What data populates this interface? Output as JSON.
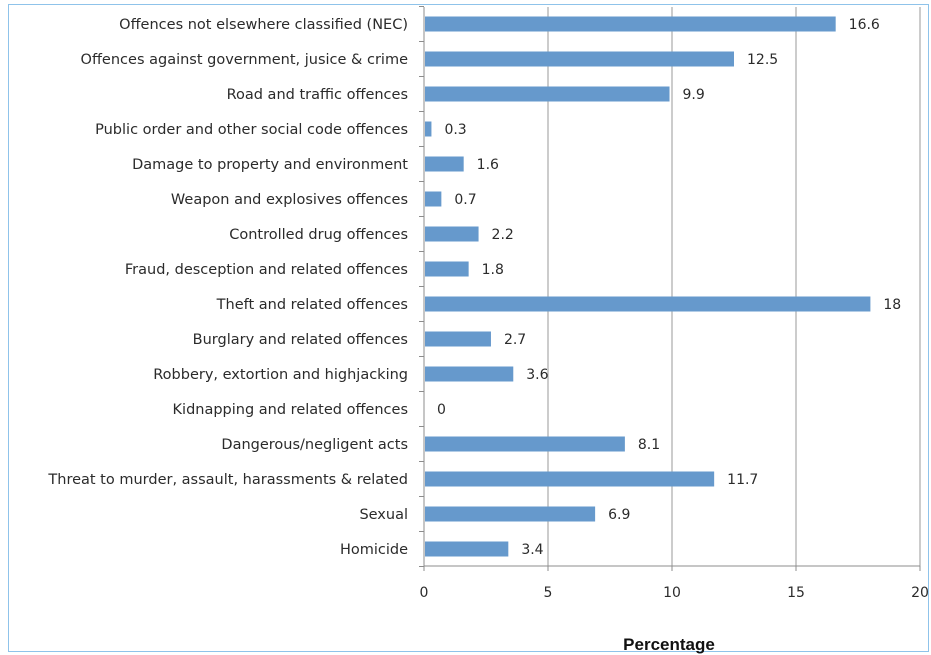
{
  "chart_data": {
    "type": "bar",
    "orientation": "horizontal",
    "categories": [
      "Offences not elsewhere classified (NEC)",
      "Offences against government, jusice & crime",
      "Road and traffic offences",
      "Public order and other social  code offences",
      "Damage to property and environment",
      "Weapon and explosives offences",
      "Controlled drug offences",
      "Fraud, desception and related offences",
      "Theft and related offences",
      "Burglary and related offences",
      "Robbery, extortion and highjacking",
      "Kidnapping and related offences",
      "Dangerous/negligent acts",
      "Threat to murder, assault, harassments & related",
      "Sexual",
      "Homicide"
    ],
    "values": [
      16.6,
      12.5,
      9.9,
      0.3,
      1.6,
      0.7,
      2.2,
      1.8,
      18,
      2.7,
      3.6,
      0,
      8.1,
      11.7,
      6.9,
      3.4
    ],
    "value_labels": [
      "16.6",
      "12.5",
      "9.9",
      "0.3",
      "1.6",
      "0.7",
      "2.2",
      "1.8",
      "18",
      "2.7",
      "3.6",
      "0",
      "8.1",
      "11.7",
      "6.9",
      "3.4"
    ],
    "xlabel": "Percentage",
    "ylabel": "",
    "xlim": [
      0,
      20
    ],
    "xticks": [
      0,
      5,
      10,
      15,
      20
    ],
    "xtick_labels": [
      "0",
      "5",
      "10",
      "15",
      "20"
    ],
    "grid": "vertical",
    "legend": "none",
    "colors": {
      "bar": "#6699cc",
      "grid": "#9a9a9a",
      "axis": "#8c8c8c",
      "frame": "#8fc3ea"
    }
  }
}
